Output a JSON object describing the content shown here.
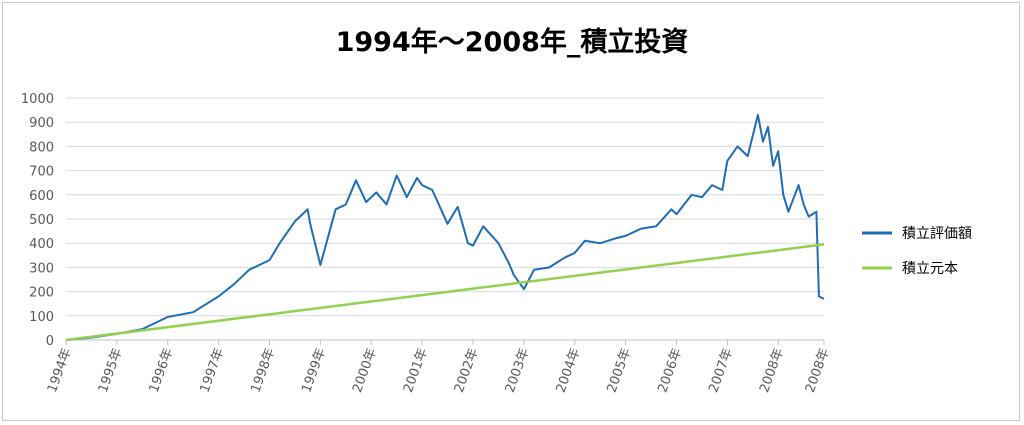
{
  "chart_data": {
    "type": "line",
    "title": "1994年～2008年_積立投資",
    "xlabel": "",
    "ylabel": "",
    "ylim": [
      0,
      1000
    ],
    "yticks": [
      0,
      100,
      200,
      300,
      400,
      500,
      600,
      700,
      800,
      900,
      1000
    ],
    "xlim": [
      1994.0,
      2008.9
    ],
    "xticks": [
      1994,
      1995,
      1996,
      1997,
      1998,
      1999,
      2000,
      2001,
      2002,
      2003,
      2004,
      2005,
      2006,
      2007,
      2008,
      2008.9
    ],
    "xtick_labels": [
      "1994年",
      "1995年",
      "1996年",
      "1997年",
      "1998年",
      "1999年",
      "2000年",
      "2001年",
      "2002年",
      "2003年",
      "2004年",
      "2005年",
      "2006年",
      "2007年",
      "2008年",
      "2008年"
    ],
    "grid": true,
    "legend_position": "right",
    "series": [
      {
        "name": "積立評価額",
        "color": "#1f6db5",
        "x": [
          1994.0,
          1994.5,
          1995.0,
          1995.5,
          1996.0,
          1996.5,
          1997.0,
          1997.3,
          1997.6,
          1998.0,
          1998.2,
          1998.5,
          1998.75,
          1998.8,
          1999.0,
          1999.3,
          1999.5,
          1999.7,
          1999.9,
          2000.1,
          2000.3,
          2000.5,
          2000.7,
          2000.9,
          2001.0,
          2001.2,
          2001.5,
          2001.7,
          2001.9,
          2002.0,
          2002.2,
          2002.5,
          2002.7,
          2002.8,
          2003.0,
          2003.2,
          2003.5,
          2003.8,
          2004.0,
          2004.2,
          2004.5,
          2004.8,
          2005.0,
          2005.3,
          2005.6,
          2005.9,
          2006.0,
          2006.3,
          2006.5,
          2006.7,
          2006.9,
          2007.0,
          2007.2,
          2007.4,
          2007.6,
          2007.7,
          2007.8,
          2007.9,
          2008.0,
          2008.1,
          2008.2,
          2008.4,
          2008.5,
          2008.6,
          2008.75,
          2008.8,
          2008.9
        ],
        "values": [
          0,
          10,
          25,
          45,
          95,
          115,
          180,
          230,
          290,
          330,
          400,
          490,
          540,
          480,
          310,
          540,
          560,
          660,
          570,
          610,
          560,
          680,
          590,
          670,
          640,
          620,
          480,
          550,
          400,
          390,
          470,
          400,
          320,
          270,
          210,
          290,
          300,
          340,
          360,
          410,
          400,
          420,
          430,
          460,
          470,
          540,
          520,
          600,
          590,
          640,
          620,
          740,
          800,
          760,
          930,
          820,
          880,
          720,
          780,
          600,
          530,
          640,
          560,
          510,
          530,
          180,
          170
        ]
      },
      {
        "name": "積立元本",
        "color": "#92d050",
        "x": [
          1994.0,
          2008.9
        ],
        "values": [
          0,
          395
        ]
      }
    ]
  }
}
